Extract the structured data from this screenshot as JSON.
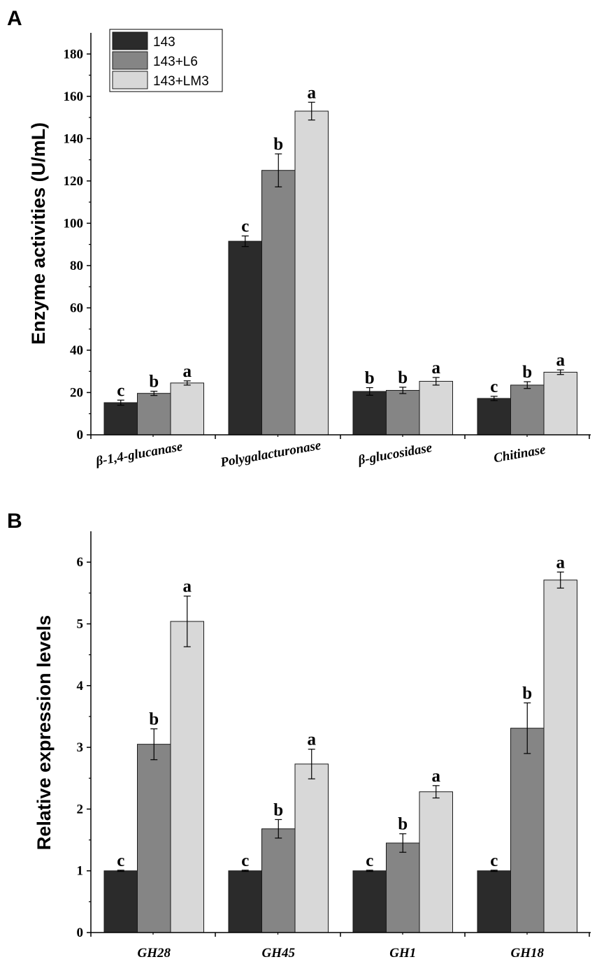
{
  "colors": {
    "s143": "#2b2b2b",
    "s143L6": "#858585",
    "s143LM3": "#d8d8d8",
    "axis": "#000000",
    "bar_edge": "#1a1a1a"
  },
  "chart_data": [
    {
      "panel": "A",
      "type": "bar",
      "title": "",
      "xlabel": "",
      "ylabel": "Enzyme activities (U/mL)",
      "ylim": [
        0,
        190
      ],
      "yticks": [
        0,
        20,
        40,
        60,
        80,
        100,
        120,
        140,
        160,
        180
      ],
      "categories": [
        "β-1,4-glucanase",
        "Polygalacturonase",
        "β-glucosidase",
        "Chitinase"
      ],
      "legend": {
        "placement": "top-left",
        "entries": [
          "143",
          "143+L6",
          "143+LM3"
        ]
      },
      "series": [
        {
          "name": "143",
          "values": [
            15.2,
            91.5,
            20.5,
            17.2
          ],
          "errors": [
            1.2,
            2.5,
            1.8,
            1.0
          ],
          "letters": [
            "c",
            "c",
            "b",
            "c"
          ]
        },
        {
          "name": "143+L6",
          "values": [
            19.6,
            125,
            21.0,
            23.5
          ],
          "errors": [
            1.0,
            7.8,
            1.5,
            1.6
          ],
          "letters": [
            "b",
            "b",
            "b",
            "b"
          ]
        },
        {
          "name": "143+LM3",
          "values": [
            24.5,
            153,
            25.3,
            29.6
          ],
          "errors": [
            1.0,
            4.2,
            1.8,
            1.1
          ],
          "letters": [
            "a",
            "a",
            "a",
            "a"
          ]
        }
      ]
    },
    {
      "panel": "B",
      "type": "bar",
      "title": "",
      "xlabel": "",
      "ylabel": "Relative expression levels",
      "ylim": [
        0,
        6.5
      ],
      "yticks": [
        0,
        1,
        2,
        3,
        4,
        5,
        6
      ],
      "categories": [
        "GH28",
        "GH45",
        "GH1",
        "GH18"
      ],
      "series": [
        {
          "name": "143",
          "values": [
            1.0,
            1.0,
            1.0,
            1.0
          ],
          "errors": [
            0.01,
            0.01,
            0.01,
            0.01
          ],
          "letters": [
            "c",
            "c",
            "c",
            "c"
          ]
        },
        {
          "name": "143+L6",
          "values": [
            3.05,
            1.68,
            1.45,
            3.31
          ],
          "errors": [
            0.25,
            0.15,
            0.15,
            0.41
          ],
          "letters": [
            "b",
            "b",
            "b",
            "b"
          ]
        },
        {
          "name": "143+LM3",
          "values": [
            5.04,
            2.73,
            2.28,
            5.71
          ],
          "errors": [
            0.41,
            0.24,
            0.1,
            0.13
          ],
          "letters": [
            "a",
            "a",
            "a",
            "a"
          ]
        }
      ]
    }
  ]
}
